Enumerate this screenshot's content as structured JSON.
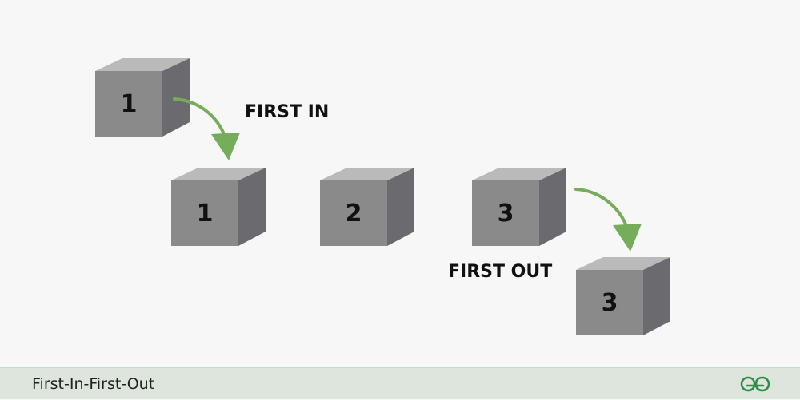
{
  "diagram": {
    "source_box": {
      "number": "1"
    },
    "queue": [
      {
        "number": "1"
      },
      {
        "number": "2"
      },
      {
        "number": "3"
      }
    ],
    "output_box": {
      "number": "3"
    },
    "labels": {
      "first_in": "FIRST IN",
      "first_out": "FIRST OUT"
    }
  },
  "footer": {
    "title": "First-In-First-Out",
    "logo": "gfg-logo-icon"
  },
  "colors": {
    "cube_front": "#8a8a8a",
    "cube_top": "#bababa",
    "cube_side": "#6b6b6f",
    "arrow": "#75ad5a",
    "footer_bg": "#dde5dd",
    "logo": "#2f8d46"
  }
}
